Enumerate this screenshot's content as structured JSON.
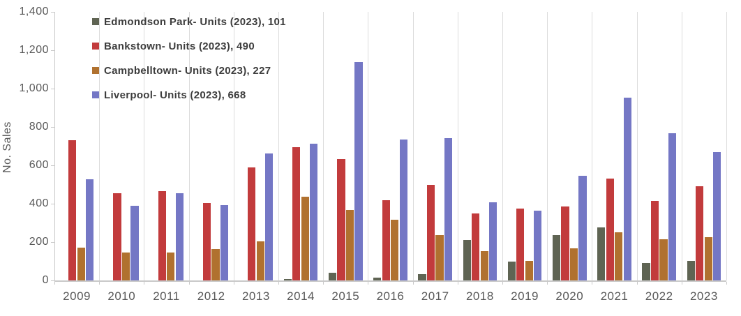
{
  "colors": {
    "axis_line": "#c9c9c9",
    "gridline": "#dcdcdc",
    "tick_text": "#595959",
    "legend_text": "#3d3d3d",
    "background": "#ffffff"
  },
  "chart_data": {
    "type": "bar",
    "title": "",
    "xlabel": "",
    "ylabel": "No. Sales",
    "ylim": [
      0,
      1400
    ],
    "ytick_step": 200,
    "ytick_labels": [
      "0",
      "200",
      "400",
      "600",
      "800",
      "1,000",
      "1,200",
      "1,400"
    ],
    "grid": "vertical category separators only",
    "legend_position": "top-left inside plot, vertical stack",
    "categories": [
      "2009",
      "2010",
      "2011",
      "2012",
      "2013",
      "2014",
      "2015",
      "2016",
      "2017",
      "2018",
      "2019",
      "2020",
      "2021",
      "2022",
      "2023"
    ],
    "series": [
      {
        "name": "Edmondson Park- Units (2023), 101",
        "color": "#5f6453",
        "values": [
          0,
          0,
          0,
          0,
          0,
          8,
          40,
          15,
          32,
          210,
          100,
          235,
          275,
          90,
          101
        ]
      },
      {
        "name": "Bankstown- Units (2023), 490",
        "color": "#c23b3c",
        "values": [
          730,
          455,
          467,
          405,
          590,
          693,
          633,
          420,
          497,
          350,
          375,
          386,
          530,
          416,
          490
        ]
      },
      {
        "name": "Campbelltown- Units (2023), 227",
        "color": "#b0712f",
        "values": [
          170,
          145,
          144,
          162,
          205,
          435,
          367,
          318,
          235,
          154,
          101,
          166,
          251,
          216,
          227
        ]
      },
      {
        "name": "Liverpool- Units (2023), 668",
        "color": "#7477c5",
        "values": [
          529,
          390,
          456,
          393,
          661,
          713,
          1137,
          735,
          742,
          406,
          362,
          547,
          951,
          767,
          668
        ]
      }
    ]
  }
}
